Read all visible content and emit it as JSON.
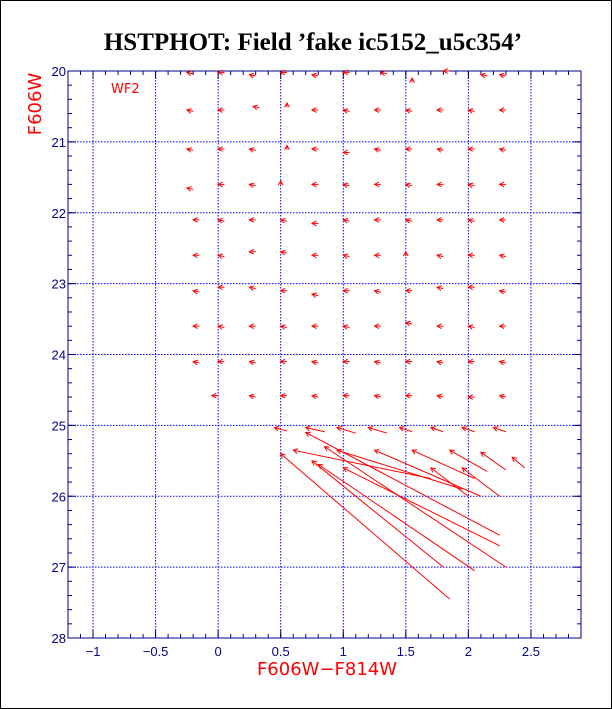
{
  "chart_data": {
    "type": "vector",
    "title": "HSTPHOT: Field ’fake ic5152_u5c354’",
    "xlabel": "F606W−F814W",
    "ylabel": "F606W",
    "panel_label": "WF2",
    "xlim": [
      -1.2,
      2.9
    ],
    "ylim": [
      28,
      20
    ],
    "x_ticks": [
      -1,
      -0.5,
      0,
      0.5,
      1,
      1.5,
      2,
      2.5
    ],
    "x_tick_labels": [
      "−1",
      "−0.5",
      "0",
      "0.5",
      "1",
      "1.5",
      "2",
      "2.5"
    ],
    "y_ticks": [
      20,
      21,
      22,
      23,
      24,
      25,
      26,
      27,
      28
    ],
    "y_tick_labels": [
      "20",
      "21",
      "22",
      "23",
      "24",
      "25",
      "26",
      "27",
      "28"
    ],
    "grid": true,
    "colors": {
      "axes": "#00008b",
      "grid": "#0000ff",
      "vectors": "#ff0000",
      "labels": "#ff0000",
      "title": "#000000"
    },
    "vectors": [
      {
        "x": -0.25,
        "y": 20.02,
        "dx": 0.05,
        "dy": 0.02
      },
      {
        "x": 0.0,
        "y": 20.02,
        "dx": 0.05,
        "dy": 0.0
      },
      {
        "x": 0.25,
        "y": 20.05,
        "dx": 0.05,
        "dy": 0.02
      },
      {
        "x": 0.5,
        "y": 20.02,
        "dx": 0.05,
        "dy": 0.0
      },
      {
        "x": 0.75,
        "y": 20.05,
        "dx": 0.05,
        "dy": 0.02
      },
      {
        "x": 1.0,
        "y": 20.02,
        "dx": 0.05,
        "dy": 0.0
      },
      {
        "x": 1.3,
        "y": 20.02,
        "dx": 0.05,
        "dy": 0.02
      },
      {
        "x": 1.55,
        "y": 20.1,
        "dx": 0.0,
        "dy": 0.06
      },
      {
        "x": 1.8,
        "y": 20.0,
        "dx": 0.05,
        "dy": 0.0
      },
      {
        "x": 2.1,
        "y": 20.05,
        "dx": 0.05,
        "dy": 0.02
      },
      {
        "x": 2.25,
        "y": 20.05,
        "dx": 0.05,
        "dy": 0.02
      },
      {
        "x": -0.25,
        "y": 20.55,
        "dx": 0.05,
        "dy": 0.02
      },
      {
        "x": 0.0,
        "y": 20.55,
        "dx": 0.05,
        "dy": 0.0
      },
      {
        "x": 0.28,
        "y": 20.5,
        "dx": 0.05,
        "dy": 0.02
      },
      {
        "x": 0.55,
        "y": 20.45,
        "dx": 0.0,
        "dy": 0.06
      },
      {
        "x": 0.75,
        "y": 20.55,
        "dx": 0.05,
        "dy": 0.0
      },
      {
        "x": 1.0,
        "y": 20.55,
        "dx": 0.05,
        "dy": 0.02
      },
      {
        "x": 1.25,
        "y": 20.55,
        "dx": 0.05,
        "dy": 0.0
      },
      {
        "x": 1.5,
        "y": 20.55,
        "dx": 0.05,
        "dy": 0.02
      },
      {
        "x": 1.75,
        "y": 20.55,
        "dx": 0.05,
        "dy": 0.0
      },
      {
        "x": 2.0,
        "y": 20.55,
        "dx": 0.05,
        "dy": 0.02
      },
      {
        "x": 2.25,
        "y": 20.55,
        "dx": 0.05,
        "dy": 0.0
      },
      {
        "x": -0.25,
        "y": 21.1,
        "dx": 0.05,
        "dy": 0.02
      },
      {
        "x": 0.0,
        "y": 21.1,
        "dx": 0.05,
        "dy": 0.0
      },
      {
        "x": 0.25,
        "y": 21.1,
        "dx": 0.05,
        "dy": 0.02
      },
      {
        "x": 0.55,
        "y": 21.05,
        "dx": 0.0,
        "dy": 0.06
      },
      {
        "x": 0.75,
        "y": 21.1,
        "dx": 0.05,
        "dy": 0.0
      },
      {
        "x": 1.0,
        "y": 21.15,
        "dx": 0.05,
        "dy": 0.0
      },
      {
        "x": 1.25,
        "y": 21.1,
        "dx": 0.05,
        "dy": 0.02
      },
      {
        "x": 1.5,
        "y": 21.1,
        "dx": 0.05,
        "dy": 0.0
      },
      {
        "x": 1.75,
        "y": 21.1,
        "dx": 0.05,
        "dy": 0.02
      },
      {
        "x": 2.0,
        "y": 21.1,
        "dx": 0.05,
        "dy": 0.0
      },
      {
        "x": 2.25,
        "y": 21.1,
        "dx": 0.05,
        "dy": 0.02
      },
      {
        "x": -0.25,
        "y": 21.65,
        "dx": 0.05,
        "dy": 0.02
      },
      {
        "x": 0.0,
        "y": 21.6,
        "dx": 0.05,
        "dy": 0.0
      },
      {
        "x": 0.25,
        "y": 21.6,
        "dx": 0.05,
        "dy": 0.02
      },
      {
        "x": 0.5,
        "y": 21.55,
        "dx": 0.0,
        "dy": 0.06
      },
      {
        "x": 0.75,
        "y": 21.6,
        "dx": 0.05,
        "dy": 0.0
      },
      {
        "x": 1.0,
        "y": 21.6,
        "dx": 0.05,
        "dy": 0.02
      },
      {
        "x": 1.25,
        "y": 21.6,
        "dx": 0.05,
        "dy": 0.0
      },
      {
        "x": 1.5,
        "y": 21.6,
        "dx": 0.05,
        "dy": 0.02
      },
      {
        "x": 1.75,
        "y": 21.6,
        "dx": 0.05,
        "dy": 0.0
      },
      {
        "x": 2.0,
        "y": 21.6,
        "dx": 0.05,
        "dy": 0.02
      },
      {
        "x": 2.25,
        "y": 21.6,
        "dx": 0.05,
        "dy": 0.0
      },
      {
        "x": -0.2,
        "y": 22.1,
        "dx": 0.05,
        "dy": 0.0
      },
      {
        "x": 0.0,
        "y": 22.1,
        "dx": 0.05,
        "dy": 0.02
      },
      {
        "x": 0.25,
        "y": 22.1,
        "dx": 0.05,
        "dy": 0.0
      },
      {
        "x": 0.5,
        "y": 22.1,
        "dx": 0.05,
        "dy": 0.02
      },
      {
        "x": 0.75,
        "y": 22.15,
        "dx": 0.05,
        "dy": 0.0
      },
      {
        "x": 1.0,
        "y": 22.1,
        "dx": 0.05,
        "dy": 0.02
      },
      {
        "x": 1.25,
        "y": 22.1,
        "dx": 0.05,
        "dy": 0.0
      },
      {
        "x": 1.5,
        "y": 22.1,
        "dx": 0.05,
        "dy": 0.02
      },
      {
        "x": 1.75,
        "y": 22.1,
        "dx": 0.05,
        "dy": 0.0
      },
      {
        "x": 2.0,
        "y": 22.1,
        "dx": 0.05,
        "dy": 0.02
      },
      {
        "x": 2.25,
        "y": 22.1,
        "dx": 0.05,
        "dy": 0.0
      },
      {
        "x": -0.2,
        "y": 22.6,
        "dx": 0.05,
        "dy": 0.0
      },
      {
        "x": 0.0,
        "y": 22.6,
        "dx": 0.05,
        "dy": 0.02
      },
      {
        "x": 0.25,
        "y": 22.55,
        "dx": 0.05,
        "dy": 0.0
      },
      {
        "x": 0.5,
        "y": 22.55,
        "dx": 0.05,
        "dy": 0.02
      },
      {
        "x": 0.75,
        "y": 22.6,
        "dx": 0.05,
        "dy": 0.0
      },
      {
        "x": 1.0,
        "y": 22.6,
        "dx": 0.05,
        "dy": 0.02
      },
      {
        "x": 1.25,
        "y": 22.6,
        "dx": 0.05,
        "dy": 0.0
      },
      {
        "x": 1.5,
        "y": 22.55,
        "dx": 0.0,
        "dy": 0.06
      },
      {
        "x": 1.75,
        "y": 22.6,
        "dx": 0.05,
        "dy": 0.02
      },
      {
        "x": 2.0,
        "y": 22.6,
        "dx": 0.05,
        "dy": 0.0
      },
      {
        "x": 2.25,
        "y": 22.6,
        "dx": 0.05,
        "dy": 0.02
      },
      {
        "x": -0.2,
        "y": 23.1,
        "dx": 0.05,
        "dy": 0.02
      },
      {
        "x": 0.0,
        "y": 23.05,
        "dx": 0.05,
        "dy": 0.0
      },
      {
        "x": 0.25,
        "y": 23.05,
        "dx": 0.05,
        "dy": 0.02
      },
      {
        "x": 0.5,
        "y": 23.1,
        "dx": 0.05,
        "dy": 0.0
      },
      {
        "x": 0.75,
        "y": 23.15,
        "dx": 0.05,
        "dy": 0.02
      },
      {
        "x": 1.0,
        "y": 23.1,
        "dx": 0.05,
        "dy": 0.0
      },
      {
        "x": 1.25,
        "y": 23.1,
        "dx": 0.05,
        "dy": 0.02
      },
      {
        "x": 1.5,
        "y": 23.1,
        "dx": 0.05,
        "dy": 0.0
      },
      {
        "x": 1.75,
        "y": 23.05,
        "dx": 0.05,
        "dy": 0.02
      },
      {
        "x": 2.0,
        "y": 23.05,
        "dx": 0.05,
        "dy": 0.0
      },
      {
        "x": 2.25,
        "y": 23.1,
        "dx": 0.05,
        "dy": 0.02
      },
      {
        "x": -0.2,
        "y": 23.6,
        "dx": 0.05,
        "dy": 0.0
      },
      {
        "x": 0.0,
        "y": 23.6,
        "dx": 0.05,
        "dy": 0.02
      },
      {
        "x": 0.25,
        "y": 23.6,
        "dx": 0.05,
        "dy": 0.0
      },
      {
        "x": 0.5,
        "y": 23.6,
        "dx": 0.05,
        "dy": 0.02
      },
      {
        "x": 0.75,
        "y": 23.6,
        "dx": 0.05,
        "dy": 0.0
      },
      {
        "x": 1.0,
        "y": 23.6,
        "dx": 0.05,
        "dy": 0.02
      },
      {
        "x": 1.25,
        "y": 23.6,
        "dx": 0.05,
        "dy": 0.0
      },
      {
        "x": 1.5,
        "y": 23.55,
        "dx": 0.05,
        "dy": 0.02
      },
      {
        "x": 1.75,
        "y": 23.6,
        "dx": 0.05,
        "dy": 0.0
      },
      {
        "x": 2.0,
        "y": 23.6,
        "dx": 0.05,
        "dy": 0.02
      },
      {
        "x": 2.25,
        "y": 23.6,
        "dx": 0.05,
        "dy": 0.0
      },
      {
        "x": -0.2,
        "y": 24.1,
        "dx": 0.05,
        "dy": 0.02
      },
      {
        "x": 0.0,
        "y": 24.1,
        "dx": 0.05,
        "dy": 0.0
      },
      {
        "x": 0.25,
        "y": 24.1,
        "dx": 0.05,
        "dy": 0.02
      },
      {
        "x": 0.5,
        "y": 24.1,
        "dx": 0.05,
        "dy": 0.0
      },
      {
        "x": 0.75,
        "y": 24.1,
        "dx": 0.05,
        "dy": 0.02
      },
      {
        "x": 1.0,
        "y": 24.1,
        "dx": 0.05,
        "dy": 0.0
      },
      {
        "x": 1.25,
        "y": 24.1,
        "dx": 0.05,
        "dy": 0.02
      },
      {
        "x": 1.5,
        "y": 24.1,
        "dx": 0.05,
        "dy": 0.0
      },
      {
        "x": 1.75,
        "y": 24.1,
        "dx": 0.05,
        "dy": 0.02
      },
      {
        "x": 2.0,
        "y": 24.1,
        "dx": 0.05,
        "dy": 0.0
      },
      {
        "x": 2.25,
        "y": 24.1,
        "dx": 0.05,
        "dy": 0.02
      },
      {
        "x": -0.05,
        "y": 24.58,
        "dx": 0.05,
        "dy": 0.0
      },
      {
        "x": 0.25,
        "y": 24.58,
        "dx": 0.05,
        "dy": 0.02
      },
      {
        "x": 0.5,
        "y": 24.58,
        "dx": 0.05,
        "dy": 0.0
      },
      {
        "x": 0.75,
        "y": 24.58,
        "dx": 0.05,
        "dy": 0.02
      },
      {
        "x": 1.0,
        "y": 24.58,
        "dx": 0.05,
        "dy": 0.0
      },
      {
        "x": 1.25,
        "y": 24.58,
        "dx": 0.05,
        "dy": 0.02
      },
      {
        "x": 1.5,
        "y": 24.58,
        "dx": 0.05,
        "dy": 0.0
      },
      {
        "x": 1.75,
        "y": 24.58,
        "dx": 0.05,
        "dy": 0.02
      },
      {
        "x": 2.0,
        "y": 24.6,
        "dx": 0.05,
        "dy": 0.0
      },
      {
        "x": 2.25,
        "y": 24.58,
        "dx": 0.05,
        "dy": 0.02
      },
      {
        "x": 0.45,
        "y": 25.03,
        "dx": 0.1,
        "dy": 0.05
      },
      {
        "x": 0.7,
        "y": 25.03,
        "dx": 0.15,
        "dy": 0.06
      },
      {
        "x": 0.95,
        "y": 25.03,
        "dx": 0.15,
        "dy": 0.08
      },
      {
        "x": 1.2,
        "y": 25.03,
        "dx": 0.15,
        "dy": 0.08
      },
      {
        "x": 1.45,
        "y": 25.03,
        "dx": 0.1,
        "dy": 0.06
      },
      {
        "x": 1.7,
        "y": 25.03,
        "dx": 0.1,
        "dy": 0.06
      },
      {
        "x": 1.95,
        "y": 25.03,
        "dx": 0.1,
        "dy": 0.06
      },
      {
        "x": 2.2,
        "y": 25.03,
        "dx": 0.1,
        "dy": 0.06
      },
      {
        "x": 0.6,
        "y": 25.35,
        "dx": 1.1,
        "dy": 0.4
      },
      {
        "x": 0.95,
        "y": 25.35,
        "dx": 1.0,
        "dy": 0.55
      },
      {
        "x": 1.25,
        "y": 25.35,
        "dx": 0.85,
        "dy": 0.65
      },
      {
        "x": 1.55,
        "y": 25.35,
        "dx": 0.5,
        "dy": 0.4
      },
      {
        "x": 1.85,
        "y": 25.35,
        "dx": 0.3,
        "dy": 0.3
      },
      {
        "x": 2.1,
        "y": 25.38,
        "dx": 0.2,
        "dy": 0.25
      },
      {
        "x": 2.35,
        "y": 25.45,
        "dx": 0.1,
        "dy": 0.15
      },
      {
        "x": 0.7,
        "y": 25.1,
        "dx": 1.55,
        "dy": 1.45
      },
      {
        "x": 0.85,
        "y": 25.3,
        "dx": 1.45,
        "dy": 1.7
      },
      {
        "x": 0.8,
        "y": 25.55,
        "dx": 1.25,
        "dy": 1.5
      },
      {
        "x": 0.75,
        "y": 25.5,
        "dx": 1.05,
        "dy": 1.5
      },
      {
        "x": 0.5,
        "y": 25.4,
        "dx": 1.35,
        "dy": 2.05
      },
      {
        "x": 1.0,
        "y": 25.6,
        "dx": 1.25,
        "dy": 1.1
      },
      {
        "x": 1.7,
        "y": 25.6,
        "dx": 0.3,
        "dy": 0.4
      },
      {
        "x": 1.95,
        "y": 25.6,
        "dx": 0.3,
        "dy": 0.4
      }
    ]
  }
}
